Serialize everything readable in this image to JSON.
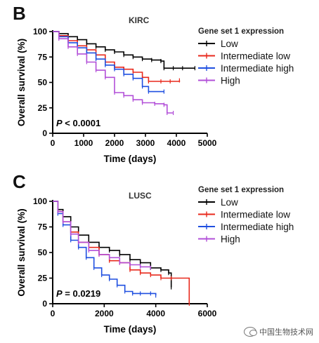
{
  "watermark": "中国生物技术网",
  "chart_data": [
    {
      "type": "line",
      "panel_label": "B",
      "title": "KIRC",
      "xlabel": "Time (days)",
      "ylabel": "Overall survival (%)",
      "xlim": [
        0,
        5000
      ],
      "ylim": [
        0,
        100
      ],
      "xticks": [
        0,
        1000,
        2000,
        3000,
        4000,
        5000
      ],
      "yticks": [
        0,
        25,
        50,
        75,
        100
      ],
      "grid": false,
      "legend_title": "Gene set 1 expression",
      "legend_position": "top-right",
      "annotation": "P < 0.0001",
      "series": [
        {
          "name": "Low",
          "color": "#000000",
          "x": [
            0,
            200,
            500,
            800,
            1100,
            1400,
            1700,
            2000,
            2300,
            2600,
            2900,
            3200,
            3500,
            3600,
            3900,
            4200,
            4600
          ],
          "y": [
            100,
            98,
            95,
            92,
            88,
            85,
            82,
            80,
            77,
            75,
            73,
            72,
            71,
            64,
            64,
            64,
            64
          ]
        },
        {
          "name": "Intermediate low",
          "color": "#e8291c",
          "x": [
            0,
            200,
            500,
            800,
            1100,
            1400,
            1700,
            2000,
            2300,
            2600,
            2900,
            3100,
            3500,
            3800,
            4100
          ],
          "y": [
            100,
            96,
            91,
            86,
            82,
            77,
            70,
            65,
            63,
            60,
            55,
            51,
            51,
            51,
            52
          ]
        },
        {
          "name": "Intermediate high",
          "color": "#1f4fe0",
          "x": [
            0,
            200,
            500,
            800,
            1100,
            1400,
            1700,
            2000,
            2300,
            2600,
            2900,
            3100,
            3600
          ],
          "y": [
            100,
            95,
            89,
            84,
            79,
            73,
            67,
            63,
            58,
            54,
            46,
            41,
            41
          ]
        },
        {
          "name": "High",
          "color": "#b24fd8",
          "x": [
            0,
            200,
            500,
            800,
            1100,
            1400,
            1700,
            2000,
            2300,
            2600,
            2900,
            3300,
            3600,
            3700,
            3900
          ],
          "y": [
            100,
            93,
            85,
            78,
            70,
            62,
            55,
            40,
            37,
            33,
            30,
            29,
            28,
            20,
            20
          ]
        }
      ]
    },
    {
      "type": "line",
      "panel_label": "C",
      "title": "LUSC",
      "xlabel": "Time (days)",
      "ylabel": "Overall survival (%)",
      "xlim": [
        0,
        6000
      ],
      "ylim": [
        0,
        100
      ],
      "xticks": [
        0,
        2000,
        4000,
        6000
      ],
      "yticks": [
        0,
        25,
        50,
        75,
        100
      ],
      "grid": false,
      "legend_title": "Gene set 1 expression",
      "legend_position": "top-right",
      "annotation": "P = 0.0219",
      "series": [
        {
          "name": "Low",
          "color": "#000000",
          "x": [
            0,
            200,
            400,
            700,
            1000,
            1400,
            1800,
            2200,
            2600,
            3000,
            3400,
            3800,
            4200,
            4500,
            4600
          ],
          "y": [
            100,
            92,
            85,
            75,
            67,
            60,
            55,
            52,
            48,
            43,
            40,
            35,
            33,
            30,
            16
          ]
        },
        {
          "name": "Intermediate low",
          "color": "#e8291c",
          "x": [
            0,
            200,
            400,
            700,
            1000,
            1400,
            1800,
            2200,
            2600,
            3000,
            3400,
            3800,
            4200,
            4600,
            5300
          ],
          "y": [
            100,
            90,
            80,
            70,
            60,
            55,
            48,
            42,
            40,
            33,
            30,
            28,
            25,
            25,
            0
          ]
        },
        {
          "name": "Intermediate high",
          "color": "#1f4fe0",
          "x": [
            0,
            200,
            400,
            700,
            1000,
            1300,
            1600,
            1900,
            2200,
            2500,
            2800,
            3100,
            3400,
            3800,
            4000
          ],
          "y": [
            100,
            88,
            77,
            62,
            55,
            45,
            35,
            28,
            24,
            18,
            12,
            10,
            10,
            10,
            8
          ]
        },
        {
          "name": "High",
          "color": "#b24fd8",
          "x": [
            0,
            200,
            400,
            700,
            1000,
            1400,
            1800,
            2200,
            2600,
            3000,
            3400,
            3800
          ],
          "y": [
            100,
            90,
            80,
            68,
            60,
            52,
            48,
            45,
            40,
            38,
            36,
            35
          ]
        }
      ]
    }
  ]
}
